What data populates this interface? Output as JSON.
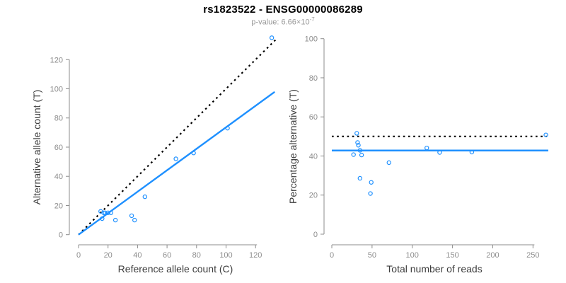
{
  "header": {
    "title": "rs1823522 - ENSG00000086289",
    "subtitle_base": "p-value: 6.66×10",
    "subtitle_exponent": "-7"
  },
  "colors": {
    "background": "#ffffff",
    "accent_blue": "#1E90FF",
    "dotted_line_black": "#000000",
    "axis_line_gray": "#8c8c8c",
    "tick_label_gray": "#8c8c8c",
    "axis_title_dark": "#3d3d3d",
    "title_black": "#000000",
    "subtitle_gray": "#999999"
  },
  "chart_data": [
    {
      "name": "allele-count-scatter",
      "type": "scatter",
      "xlabel": "Reference allele count (C)",
      "ylabel": "Alternative allele count (T)",
      "xlim": [
        0,
        134
      ],
      "ylim": [
        0,
        136
      ],
      "x_ticks": [
        0,
        20,
        40,
        60,
        80,
        100,
        120
      ],
      "y_ticks": [
        0,
        20,
        40,
        60,
        80,
        100,
        120
      ],
      "grid": false,
      "legend": "none",
      "marker": "open-circle",
      "points": [
        [
          15,
          16
        ],
        [
          17,
          15
        ],
        [
          18,
          15
        ],
        [
          20,
          15
        ],
        [
          22,
          15
        ],
        [
          16,
          11
        ],
        [
          25,
          10
        ],
        [
          36,
          13
        ],
        [
          38,
          10
        ],
        [
          45,
          26
        ],
        [
          66,
          52
        ],
        [
          78,
          56
        ],
        [
          101,
          73
        ],
        [
          131,
          135
        ]
      ],
      "lines": [
        {
          "name": "identity-line",
          "style": "dotted",
          "color": "#000000",
          "x1": 0,
          "y1": 0,
          "x2": 134,
          "y2": 134
        },
        {
          "name": "fit-line",
          "style": "solid",
          "color": "#1E90FF",
          "x1": 0,
          "y1": 0,
          "x2": 133,
          "y2": 97.9
        }
      ]
    },
    {
      "name": "percentage-alternative-scatter",
      "type": "scatter",
      "xlabel": "Total number of reads",
      "ylabel": "Percentage alternative (T)",
      "xlim": [
        0,
        269
      ],
      "ylim": [
        0,
        100
      ],
      "x_ticks": [
        0,
        50,
        100,
        150,
        200,
        250
      ],
      "y_ticks": [
        0,
        20,
        40,
        60,
        80,
        100
      ],
      "grid": false,
      "legend": "none",
      "marker": "open-circle",
      "points": [
        [
          31,
          51.6
        ],
        [
          32,
          46.9
        ],
        [
          33,
          45.5
        ],
        [
          35,
          42.9
        ],
        [
          37,
          40.5
        ],
        [
          27,
          40.7
        ],
        [
          35,
          28.6
        ],
        [
          49,
          26.5
        ],
        [
          48,
          20.8
        ],
        [
          71,
          36.6
        ],
        [
          118,
          44.1
        ],
        [
          134,
          41.8
        ],
        [
          174,
          42.0
        ],
        [
          266,
          50.8
        ]
      ],
      "lines": [
        {
          "name": "fifty-percent-line",
          "style": "dotted",
          "color": "#000000",
          "x1": 0,
          "y1": 50,
          "x2": 267,
          "y2": 50
        },
        {
          "name": "mean-percentage-line",
          "style": "solid",
          "color": "#1E90FF",
          "x1": 0,
          "y1": 42.8,
          "x2": 269,
          "y2": 42.8
        }
      ]
    }
  ]
}
